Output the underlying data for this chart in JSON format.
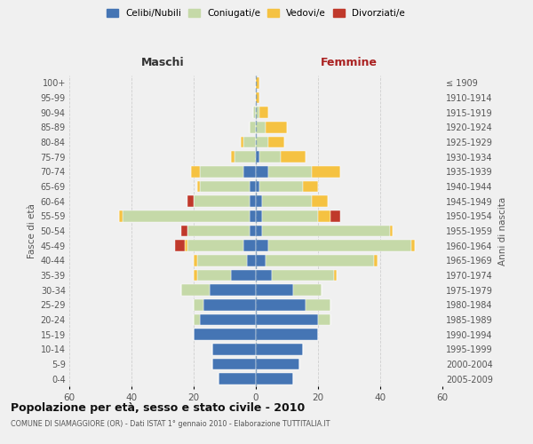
{
  "age_groups": [
    "0-4",
    "5-9",
    "10-14",
    "15-19",
    "20-24",
    "25-29",
    "30-34",
    "35-39",
    "40-44",
    "45-49",
    "50-54",
    "55-59",
    "60-64",
    "65-69",
    "70-74",
    "75-79",
    "80-84",
    "85-89",
    "90-94",
    "95-99",
    "100+"
  ],
  "birth_years": [
    "2005-2009",
    "2000-2004",
    "1995-1999",
    "1990-1994",
    "1985-1989",
    "1980-1984",
    "1975-1979",
    "1970-1974",
    "1965-1969",
    "1960-1964",
    "1955-1959",
    "1950-1954",
    "1945-1949",
    "1940-1944",
    "1935-1939",
    "1930-1934",
    "1925-1929",
    "1920-1924",
    "1915-1919",
    "1910-1914",
    "≤ 1909"
  ],
  "male": {
    "celibi": [
      12,
      14,
      14,
      20,
      18,
      17,
      15,
      8,
      3,
      4,
      2,
      2,
      2,
      2,
      4,
      0,
      0,
      0,
      0,
      0,
      0
    ],
    "coniugati": [
      0,
      0,
      0,
      0,
      2,
      3,
      9,
      11,
      16,
      18,
      20,
      41,
      18,
      16,
      14,
      7,
      4,
      2,
      1,
      0,
      0
    ],
    "vedovi": [
      0,
      0,
      0,
      0,
      0,
      0,
      0,
      1,
      1,
      1,
      0,
      1,
      0,
      1,
      3,
      1,
      1,
      0,
      0,
      0,
      0
    ],
    "divorziati": [
      0,
      0,
      0,
      0,
      0,
      0,
      0,
      0,
      0,
      3,
      2,
      0,
      2,
      0,
      0,
      0,
      0,
      0,
      0,
      0,
      0
    ]
  },
  "female": {
    "nubili": [
      12,
      14,
      15,
      20,
      20,
      16,
      12,
      5,
      3,
      4,
      2,
      2,
      2,
      1,
      4,
      1,
      0,
      0,
      0,
      0,
      0
    ],
    "coniugate": [
      0,
      0,
      0,
      0,
      4,
      8,
      9,
      20,
      35,
      46,
      41,
      18,
      16,
      14,
      14,
      7,
      4,
      3,
      1,
      0,
      0
    ],
    "vedove": [
      0,
      0,
      0,
      0,
      0,
      0,
      0,
      1,
      1,
      1,
      1,
      4,
      5,
      5,
      9,
      8,
      5,
      7,
      3,
      1,
      1
    ],
    "divorziate": [
      0,
      0,
      0,
      0,
      0,
      0,
      0,
      0,
      0,
      0,
      0,
      3,
      0,
      0,
      0,
      0,
      0,
      0,
      0,
      0,
      0
    ]
  },
  "colors": {
    "celibi": "#4575b4",
    "coniugati": "#c5d9a8",
    "vedovi": "#f5c242",
    "divorziati": "#c0392b"
  },
  "xlim": 60,
  "title": "Popolazione per età, sesso e stato civile - 2010",
  "subtitle": "COMUNE DI SIAMAGGIORE (OR) - Dati ISTAT 1° gennaio 2010 - Elaborazione TUTTITALIA.IT",
  "xlabel_left": "Maschi",
  "xlabel_right": "Femmine",
  "ylabel_left": "Fasce di età",
  "ylabel_right": "Anni di nascita",
  "legend_labels": [
    "Celibi/Nubili",
    "Coniugati/e",
    "Vedovi/e",
    "Divorziati/e"
  ],
  "bg_color": "#f0f0f0",
  "grid_color": "#cccccc"
}
